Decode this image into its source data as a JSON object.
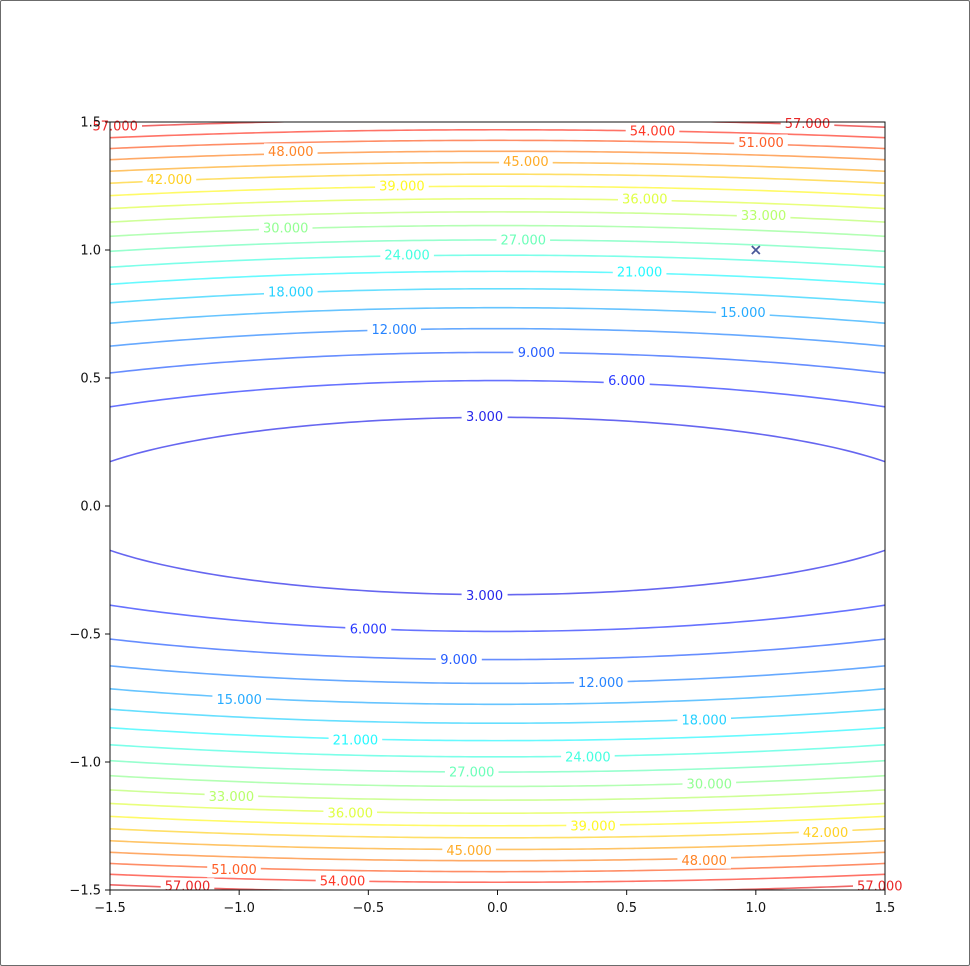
{
  "chart_data": {
    "type": "contour",
    "title": "",
    "xlabel": "",
    "ylabel": "",
    "xlim": [
      -1.5,
      1.5
    ],
    "ylim": [
      -1.5,
      1.5
    ],
    "grid": false,
    "function": "f(x, y) = x^2 + 25*y^2 (contour levels)",
    "levels": [
      3,
      6,
      9,
      12,
      15,
      18,
      21,
      24,
      27,
      30,
      33,
      36,
      39,
      42,
      45,
      48,
      51,
      54,
      57
    ],
    "level_labels": [
      "3.000",
      "6.000",
      "9.000",
      "12.000",
      "15.000",
      "18.000",
      "21.000",
      "24.000",
      "27.000",
      "30.000",
      "33.000",
      "36.000",
      "39.000",
      "42.000",
      "45.000",
      "48.000",
      "51.000",
      "54.000",
      "57.000"
    ],
    "colormap": "jet",
    "alpha": 0.6,
    "x_ticks": [
      -1.5,
      -1.0,
      -0.5,
      0.0,
      0.5,
      1.0,
      1.5
    ],
    "x_tick_labels": [
      "−1.5",
      "−1.0",
      "−0.5",
      "0.0",
      "0.5",
      "1.0",
      "1.5"
    ],
    "y_ticks": [
      -1.5,
      -1.0,
      -0.5,
      0.0,
      0.5,
      1.0,
      1.5
    ],
    "y_tick_labels": [
      "−1.5",
      "−1.0",
      "−0.5",
      "0.0",
      "0.5",
      "1.0",
      "1.5"
    ],
    "marker": {
      "x": 1.0,
      "y": 1.0,
      "symbol": "x",
      "color": "#4a5a9a"
    },
    "label_positions": [
      {
        "level": 3,
        "x": -0.05,
        "y": 0.35
      },
      {
        "level": 3,
        "x": -0.05,
        "y": -0.35
      },
      {
        "level": 6,
        "x": 0.5,
        "y": 0.49
      },
      {
        "level": 6,
        "x": -0.5,
        "y": -0.48
      },
      {
        "level": 9,
        "x": 0.15,
        "y": 0.6
      },
      {
        "level": 9,
        "x": -0.15,
        "y": -0.6
      },
      {
        "level": 12,
        "x": -0.4,
        "y": 0.69
      },
      {
        "level": 12,
        "x": 0.4,
        "y": -0.69
      },
      {
        "level": 15,
        "x": 0.95,
        "y": 0.755
      },
      {
        "level": 15,
        "x": -1.0,
        "y": -0.755
      },
      {
        "level": 18,
        "x": -0.8,
        "y": 0.835
      },
      {
        "level": 18,
        "x": 0.8,
        "y": -0.835
      },
      {
        "level": 21,
        "x": 0.55,
        "y": 0.915
      },
      {
        "level": 21,
        "x": -0.55,
        "y": -0.915
      },
      {
        "level": 24,
        "x": -0.35,
        "y": 0.98
      },
      {
        "level": 24,
        "x": 0.35,
        "y": -0.98
      },
      {
        "level": 27,
        "x": 0.1,
        "y": 1.04
      },
      {
        "level": 27,
        "x": -0.1,
        "y": -1.04
      },
      {
        "level": 30,
        "x": -0.82,
        "y": 1.085
      },
      {
        "level": 30,
        "x": 0.82,
        "y": -1.085
      },
      {
        "level": 33,
        "x": 1.03,
        "y": 1.135
      },
      {
        "level": 33,
        "x": -1.03,
        "y": -1.135
      },
      {
        "level": 36,
        "x": 0.57,
        "y": 1.2
      },
      {
        "level": 36,
        "x": -0.57,
        "y": -1.2
      },
      {
        "level": 39,
        "x": -0.37,
        "y": 1.25
      },
      {
        "level": 39,
        "x": 0.37,
        "y": -1.25
      },
      {
        "level": 42,
        "x": -1.27,
        "y": 1.275
      },
      {
        "level": 42,
        "x": 1.27,
        "y": -1.275
      },
      {
        "level": 45,
        "x": 0.11,
        "y": 1.345
      },
      {
        "level": 45,
        "x": -0.11,
        "y": -1.345
      },
      {
        "level": 48,
        "x": -0.8,
        "y": 1.385
      },
      {
        "level": 48,
        "x": 0.8,
        "y": -1.385
      },
      {
        "level": 51,
        "x": 1.02,
        "y": 1.42
      },
      {
        "level": 51,
        "x": -1.02,
        "y": -1.42
      },
      {
        "level": 54,
        "x": 0.6,
        "y": 1.465
      },
      {
        "level": 54,
        "x": -0.6,
        "y": -1.465
      },
      {
        "level": 57,
        "x": -1.48,
        "y": 1.485
      },
      {
        "level": 57,
        "x": 1.48,
        "y": -1.485
      },
      {
        "level": 57,
        "x": -1.2,
        "y": -1.485
      },
      {
        "level": 57,
        "x": 1.2,
        "y": 1.495
      }
    ]
  }
}
